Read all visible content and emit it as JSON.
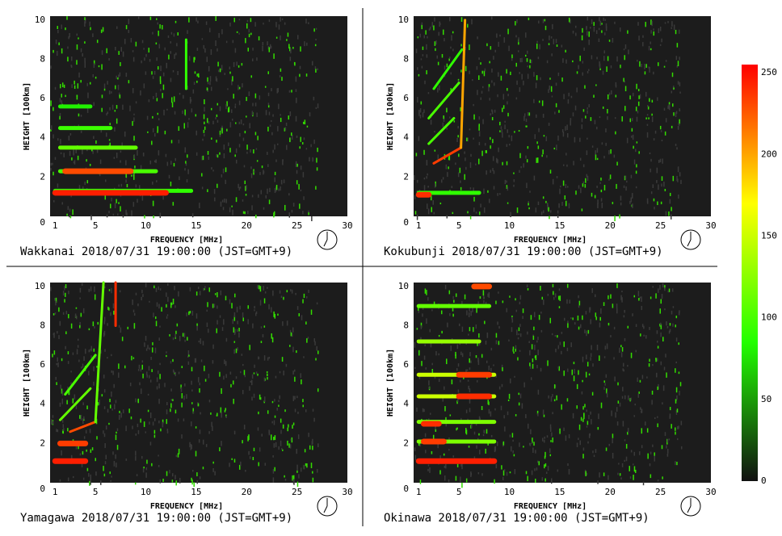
{
  "chart_data": [
    {
      "type": "ionogram",
      "title": "Wakkanai 2018/07/31 19:00:00 (JST=GMT+9)",
      "xlabel": "FREQUENCY [MHz]",
      "ylabel": "HEIGHT [100km]",
      "xlim": [
        0.5,
        30
      ],
      "ylim": [
        0,
        10.2
      ],
      "xticks": [
        1,
        5,
        10,
        15,
        20,
        25,
        30
      ],
      "yticks": [
        0,
        2,
        4,
        6,
        8,
        10
      ],
      "echoes": [
        {
          "f": [
            1,
            14.5
          ],
          "h": [
            1.3,
            1.3
          ],
          "level": 90
        },
        {
          "f": [
            1,
            12
          ],
          "h": [
            1.2,
            1.2
          ],
          "level": 245
        },
        {
          "f": [
            1.5,
            11
          ],
          "h": [
            2.3,
            2.3
          ],
          "level": 100
        },
        {
          "f": [
            2,
            8.5
          ],
          "h": [
            2.3,
            2.3
          ],
          "level": 230
        },
        {
          "f": [
            1.5,
            9
          ],
          "h": [
            3.5,
            3.5
          ],
          "level": 110
        },
        {
          "f": [
            1.5,
            6.5
          ],
          "h": [
            4.5,
            4.5
          ],
          "level": 95
        },
        {
          "f": [
            1.5,
            4.5
          ],
          "h": [
            5.6,
            5.6
          ],
          "level": 80
        },
        {
          "f": [
            14,
            14
          ],
          "h": [
            6.5,
            9
          ],
          "level": 90
        }
      ]
    },
    {
      "type": "ionogram",
      "title": "Kokubunji 2018/07/31 19:00:00 (JST=GMT+9)",
      "xlabel": "FREQUENCY [MHz]",
      "ylabel": "HEIGHT [100km]",
      "xlim": [
        0.5,
        30
      ],
      "ylim": [
        0,
        10.2
      ],
      "xticks": [
        1,
        5,
        10,
        15,
        20,
        25,
        30
      ],
      "yticks": [
        0,
        2,
        4,
        6,
        8,
        10
      ],
      "echoes": [
        {
          "f": [
            1,
            7
          ],
          "h": [
            1.2,
            1.2
          ],
          "level": 90
        },
        {
          "f": [
            1,
            2
          ],
          "h": [
            1.1,
            1.1
          ],
          "level": 240
        },
        {
          "f": [
            2.5,
            5.2
          ],
          "h": [
            2.7,
            3.5
          ],
          "level": 235
        },
        {
          "f": [
            5.2,
            5.6
          ],
          "h": [
            3.5,
            10
          ],
          "level": 200
        },
        {
          "f": [
            2,
            4.5
          ],
          "h": [
            3.7,
            5
          ],
          "level": 100
        },
        {
          "f": [
            2,
            5
          ],
          "h": [
            5,
            6.8
          ],
          "level": 100
        },
        {
          "f": [
            2.5,
            5.3
          ],
          "h": [
            6.5,
            8.5
          ],
          "level": 90
        }
      ]
    },
    {
      "type": "ionogram",
      "title": "Yamagawa 2018/07/31 19:00:00 (JST=GMT+9)",
      "xlabel": "FREQUENCY [MHz]",
      "ylabel": "HEIGHT [100km]",
      "xlim": [
        0.5,
        30
      ],
      "ylim": [
        0,
        10.2
      ],
      "xticks": [
        1,
        5,
        10,
        15,
        20,
        25,
        30
      ],
      "yticks": [
        0,
        2,
        4,
        6,
        8,
        10
      ],
      "echoes": [
        {
          "f": [
            1,
            4
          ],
          "h": [
            1.1,
            1.1
          ],
          "level": 245
        },
        {
          "f": [
            1.5,
            4
          ],
          "h": [
            2,
            2
          ],
          "level": 235
        },
        {
          "f": [
            2.5,
            5
          ],
          "h": [
            2.6,
            3.1
          ],
          "level": 230
        },
        {
          "f": [
            5,
            5.8
          ],
          "h": [
            3.1,
            10.2
          ],
          "level": 110
        },
        {
          "f": [
            1.5,
            4.5
          ],
          "h": [
            3.2,
            4.8
          ],
          "level": 110
        },
        {
          "f": [
            2,
            5
          ],
          "h": [
            4.5,
            6.5
          ],
          "level": 100
        },
        {
          "f": [
            7,
            7
          ],
          "h": [
            8,
            10.2
          ],
          "level": 240
        }
      ]
    },
    {
      "type": "ionogram",
      "title": "Okinawa 2018/07/31 19:00:00 (JST=GMT+9)",
      "xlabel": "FREQUENCY [MHz]",
      "ylabel": "HEIGHT [100km]",
      "xlim": [
        0.5,
        30
      ],
      "ylim": [
        0,
        10.2
      ],
      "xticks": [
        1,
        5,
        10,
        15,
        20,
        25,
        30
      ],
      "yticks": [
        0,
        2,
        4,
        6,
        8,
        10
      ],
      "echoes": [
        {
          "f": [
            1,
            8.5
          ],
          "h": [
            1.1,
            1.1
          ],
          "level": 245
        },
        {
          "f": [
            1,
            8.5
          ],
          "h": [
            2.1,
            2.1
          ],
          "level": 120
        },
        {
          "f": [
            1.5,
            3.5
          ],
          "h": [
            2.1,
            2.1
          ],
          "level": 235
        },
        {
          "f": [
            1,
            8.5
          ],
          "h": [
            3.1,
            3.1
          ],
          "level": 120
        },
        {
          "f": [
            1.5,
            3
          ],
          "h": [
            3,
            3
          ],
          "level": 240
        },
        {
          "f": [
            1,
            8.5
          ],
          "h": [
            4.4,
            4.4
          ],
          "level": 150
        },
        {
          "f": [
            5,
            8
          ],
          "h": [
            4.4,
            4.4
          ],
          "level": 240
        },
        {
          "f": [
            1,
            8.5
          ],
          "h": [
            5.5,
            5.5
          ],
          "level": 150
        },
        {
          "f": [
            5,
            8
          ],
          "h": [
            5.5,
            5.5
          ],
          "level": 235
        },
        {
          "f": [
            1,
            7
          ],
          "h": [
            7.2,
            7.2
          ],
          "level": 130
        },
        {
          "f": [
            1,
            8
          ],
          "h": [
            9,
            9
          ],
          "level": 110
        },
        {
          "f": [
            6.5,
            8
          ],
          "h": [
            10,
            10
          ],
          "level": 230
        }
      ]
    },
    {
      "type": "colorbar",
      "clim": [
        0,
        255
      ],
      "ticks": [
        0,
        50,
        100,
        150,
        200,
        250
      ],
      "colormap": [
        "#111111",
        "#22ff00",
        "#ffff00",
        "#ff0000"
      ]
    }
  ]
}
